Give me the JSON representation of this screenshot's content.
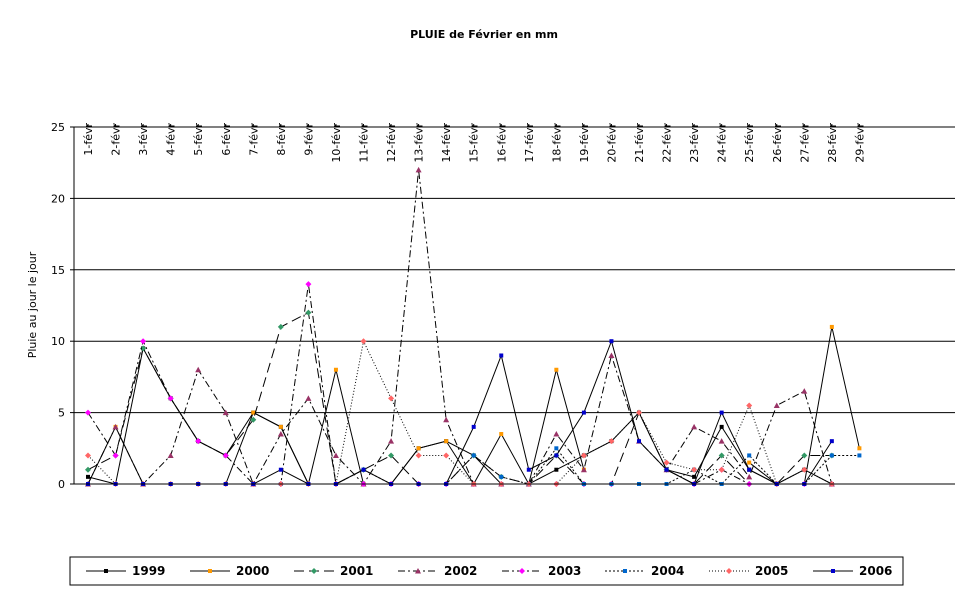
{
  "chart_data": {
    "type": "line",
    "title": "PLUIE de Février en mm",
    "xlabel": "",
    "ylabel": "Pluie au jour le jour",
    "ylim": [
      0,
      25
    ],
    "yticks": [
      0,
      5,
      10,
      15,
      20,
      25
    ],
    "grid": true,
    "legend_position": "bottom",
    "categories": [
      "1-févr",
      "2-févr",
      "3-févr",
      "4-févr",
      "5-févr",
      "6-févr",
      "7-févr",
      "8-févr",
      "9-févr",
      "10-févr",
      "11-févr",
      "12-févr",
      "13-févr",
      "14-févr",
      "15-févr",
      "16-févr",
      "17-févr",
      "18-févr",
      "19-févr",
      "20-févr",
      "21-févr",
      "22-févr",
      "23-févr",
      "24-févr",
      "25-févr",
      "26-févr",
      "27-févr",
      "28-févr",
      "29-févr"
    ],
    "series": [
      {
        "name": "1999",
        "color": "#000000",
        "dash": "solid",
        "marker": "square",
        "values": [
          0.5,
          0,
          9.5,
          6,
          3,
          2,
          5,
          4,
          0,
          0,
          0,
          0,
          2.5,
          3,
          2,
          0,
          0,
          1,
          2,
          3,
          5,
          1,
          0.5,
          4,
          1,
          0,
          1,
          0,
          null
        ]
      },
      {
        "name": "2000",
        "color": "#FF9900",
        "dash": "solid",
        "marker": "square",
        "values": [
          0,
          4,
          0,
          0,
          0,
          0,
          5,
          4,
          0,
          8,
          0,
          0,
          2.5,
          3,
          0,
          3.5,
          0,
          8,
          1,
          null,
          null,
          null,
          1,
          null,
          1.5,
          0,
          0,
          11,
          2.5
        ]
      },
      {
        "name": "2001",
        "color": "#339966",
        "dash": "longdash",
        "marker": "diamond",
        "values": [
          1,
          2,
          9.5,
          6,
          3,
          2,
          4.5,
          11,
          12,
          0,
          1,
          2,
          0,
          0,
          2,
          0.5,
          0,
          2,
          0,
          0,
          5,
          1,
          0,
          2,
          0,
          0,
          2,
          2,
          null
        ]
      },
      {
        "name": "2002",
        "color": "#993366",
        "dash": "dashdot",
        "marker": "triangle",
        "values": [
          0,
          4,
          0,
          2,
          8,
          5,
          0,
          3.5,
          6,
          2,
          0,
          3,
          22,
          4.5,
          0,
          0,
          0,
          3.5,
          1,
          9,
          3,
          1,
          4,
          3,
          0.5,
          5.5,
          6.5,
          0,
          null
        ]
      },
      {
        "name": "2003",
        "color": "#FF00FF",
        "dash": "dashdot",
        "marker": "diamond",
        "values": [
          5,
          2,
          10,
          6,
          3,
          2,
          0,
          0,
          14,
          0,
          0,
          0,
          0,
          0,
          0,
          0,
          0,
          0,
          0,
          0,
          null,
          null,
          0,
          1,
          0,
          0,
          0,
          0,
          null
        ]
      },
      {
        "name": "2004",
        "color": "#0066CC",
        "dash": "dot",
        "marker": "square",
        "values": [
          0,
          0,
          0,
          0,
          0,
          0,
          0,
          0,
          0,
          0,
          1,
          0,
          0,
          0,
          2,
          0.5,
          0,
          2.5,
          0,
          0,
          0,
          0,
          1,
          0,
          2,
          0,
          0,
          2,
          2
        ]
      },
      {
        "name": "2005",
        "color": "#FF6666",
        "dash": "dotted",
        "marker": "diamond",
        "values": [
          2,
          0,
          0,
          0,
          0,
          0,
          0,
          0,
          0,
          0,
          10,
          6,
          2,
          2,
          0,
          0,
          0,
          0,
          2,
          3,
          5,
          1.5,
          1,
          1,
          5.5,
          0,
          1,
          0,
          null
        ]
      },
      {
        "name": "2006",
        "color": "#0000CC",
        "dash": "solid",
        "marker": "square",
        "values": [
          0,
          0,
          0,
          0,
          0,
          0,
          0,
          1,
          0,
          0,
          1,
          0,
          0,
          0,
          4,
          9,
          1,
          2,
          5,
          10,
          3,
          1,
          0,
          5,
          1,
          0,
          0,
          3,
          null
        ]
      }
    ]
  }
}
